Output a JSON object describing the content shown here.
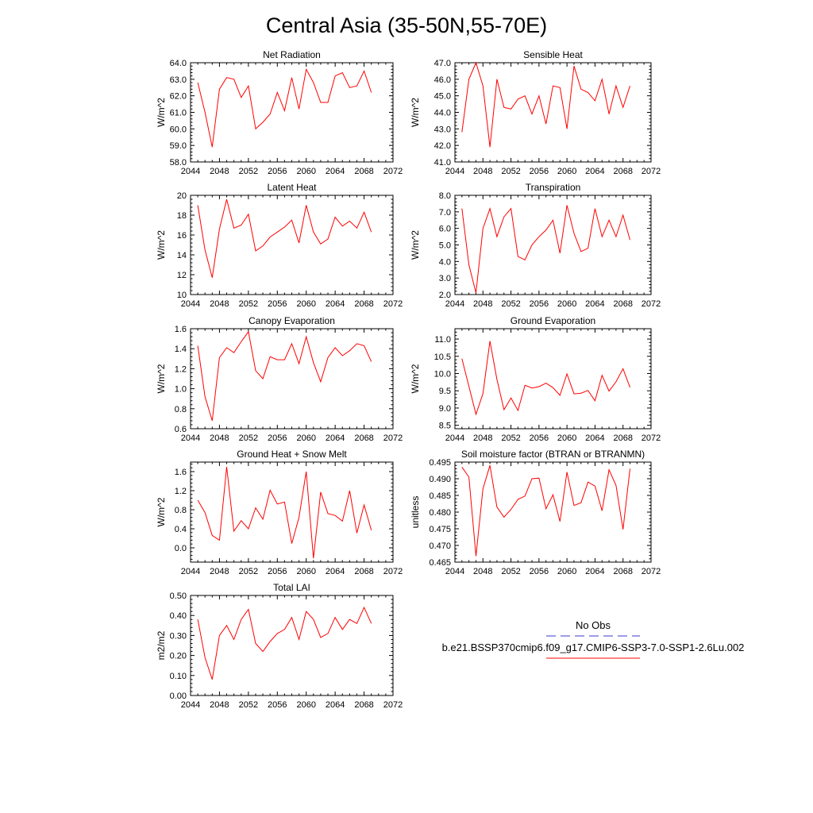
{
  "figure": {
    "title": "Central Asia (35-50N,55-70E)"
  },
  "legend": {
    "entries": [
      {
        "label": "No Obs",
        "color": "#3a3ad0",
        "style": "dashed"
      },
      {
        "label": "b.e21.BSSP370cmip6.f09_g17.CMIP6-SSP3-7.0-SSP1-2.6Lu.002",
        "color": "#ff0000",
        "style": "solid"
      }
    ]
  },
  "colors": {
    "series": "#ff0000",
    "axis": "#000000"
  },
  "chart_data": [
    {
      "type": "line",
      "title": "Net Radiation",
      "ylabel": "W/m^2",
      "xlim": [
        2044,
        2072
      ],
      "ylim": [
        58,
        64
      ],
      "xticks": [
        "2044",
        "2048",
        "2052",
        "2056",
        "2060",
        "2064",
        "2068",
        "2072"
      ],
      "yticks": [
        "58.0",
        "59.0",
        "60.0",
        "61.0",
        "62.0",
        "63.0",
        "64.0"
      ],
      "x": [
        2045,
        2046,
        2047,
        2048,
        2049,
        2050,
        2051,
        2052,
        2053,
        2054,
        2055,
        2056,
        2057,
        2058,
        2059,
        2060,
        2061,
        2062,
        2063,
        2064,
        2065,
        2066,
        2067,
        2068,
        2069
      ],
      "series": [
        {
          "values": [
            62.8,
            61.0,
            58.9,
            62.4,
            63.1,
            63.0,
            61.9,
            62.6,
            60.0,
            60.4,
            60.9,
            62.2,
            61.1,
            63.1,
            61.2,
            63.6,
            62.8,
            61.6,
            61.6,
            63.2,
            63.4,
            62.5,
            62.6,
            63.5,
            62.2
          ]
        }
      ]
    },
    {
      "type": "line",
      "title": "Sensible Heat",
      "ylabel": "W/m^2",
      "xlim": [
        2044,
        2072
      ],
      "ylim": [
        41,
        47
      ],
      "xticks": [
        "2044",
        "2048",
        "2052",
        "2056",
        "2060",
        "2064",
        "2068",
        "2072"
      ],
      "yticks": [
        "41.0",
        "42.0",
        "43.0",
        "44.0",
        "45.0",
        "46.0",
        "47.0"
      ],
      "x": [
        2045,
        2046,
        2047,
        2048,
        2049,
        2050,
        2051,
        2052,
        2053,
        2054,
        2055,
        2056,
        2057,
        2058,
        2059,
        2060,
        2061,
        2062,
        2063,
        2064,
        2065,
        2066,
        2067,
        2068,
        2069
      ],
      "series": [
        {
          "values": [
            42.8,
            46.0,
            47.0,
            45.6,
            41.9,
            46.0,
            44.3,
            44.2,
            44.8,
            45.0,
            43.9,
            45.0,
            43.3,
            45.6,
            45.5,
            43.0,
            46.8,
            45.4,
            45.2,
            44.7,
            46.0,
            43.9,
            45.6,
            44.3,
            45.6
          ]
        }
      ]
    },
    {
      "type": "line",
      "title": "Latent Heat",
      "ylabel": "W/m^2",
      "xlim": [
        2044,
        2072
      ],
      "ylim": [
        10,
        20
      ],
      "xticks": [
        "2044",
        "2048",
        "2052",
        "2056",
        "2060",
        "2064",
        "2068",
        "2072"
      ],
      "yticks": [
        "10",
        "12",
        "14",
        "16",
        "18",
        "20"
      ],
      "x": [
        2045,
        2046,
        2047,
        2048,
        2049,
        2050,
        2051,
        2052,
        2053,
        2054,
        2055,
        2056,
        2057,
        2058,
        2059,
        2060,
        2061,
        2062,
        2063,
        2064,
        2065,
        2066,
        2067,
        2068,
        2069
      ],
      "series": [
        {
          "values": [
            19.0,
            14.5,
            11.7,
            16.6,
            19.6,
            16.7,
            17.0,
            18.1,
            14.4,
            14.9,
            15.8,
            16.3,
            16.8,
            17.5,
            15.2,
            19.0,
            16.3,
            15.1,
            15.6,
            17.8,
            16.9,
            17.4,
            16.7,
            18.3,
            16.3
          ]
        }
      ]
    },
    {
      "type": "line",
      "title": "Transpiration",
      "ylabel": "W/m^2",
      "xlim": [
        2044,
        2072
      ],
      "ylim": [
        2,
        8
      ],
      "xticks": [
        "2044",
        "2048",
        "2052",
        "2056",
        "2060",
        "2064",
        "2068",
        "2072"
      ],
      "yticks": [
        "2.0",
        "3.0",
        "4.0",
        "5.0",
        "6.0",
        "7.0",
        "8.0"
      ],
      "x": [
        2045,
        2046,
        2047,
        2048,
        2049,
        2050,
        2051,
        2052,
        2053,
        2054,
        2055,
        2056,
        2057,
        2058,
        2059,
        2060,
        2061,
        2062,
        2063,
        2064,
        2065,
        2066,
        2067,
        2068,
        2069
      ],
      "series": [
        {
          "values": [
            7.2,
            3.8,
            2.1,
            6.0,
            7.2,
            5.5,
            6.7,
            7.2,
            4.3,
            4.1,
            5.0,
            5.5,
            5.9,
            6.5,
            4.5,
            7.4,
            5.7,
            4.6,
            4.8,
            7.2,
            5.5,
            6.5,
            5.5,
            6.8,
            5.3
          ]
        }
      ]
    },
    {
      "type": "line",
      "title": "Canopy Evaporation",
      "ylabel": "W/m^2",
      "xlim": [
        2044,
        2072
      ],
      "ylim": [
        0.6,
        1.6
      ],
      "xticks": [
        "2044",
        "2048",
        "2052",
        "2056",
        "2060",
        "2064",
        "2068",
        "2072"
      ],
      "yticks": [
        "0.6",
        "0.8",
        "1.0",
        "1.2",
        "1.4",
        "1.6"
      ],
      "x": [
        2045,
        2046,
        2047,
        2048,
        2049,
        2050,
        2051,
        2052,
        2053,
        2054,
        2055,
        2056,
        2057,
        2058,
        2059,
        2060,
        2061,
        2062,
        2063,
        2064,
        2065,
        2066,
        2067,
        2068,
        2069
      ],
      "series": [
        {
          "values": [
            1.43,
            0.92,
            0.68,
            1.31,
            1.41,
            1.36,
            1.47,
            1.57,
            1.18,
            1.1,
            1.32,
            1.29,
            1.29,
            1.45,
            1.25,
            1.52,
            1.26,
            1.07,
            1.31,
            1.41,
            1.33,
            1.38,
            1.45,
            1.43,
            1.27
          ]
        }
      ]
    },
    {
      "type": "line",
      "title": "Ground Evaporation",
      "ylabel": "W/m^2",
      "xlim": [
        2044,
        2072
      ],
      "ylim": [
        8.4,
        11.3
      ],
      "xticks": [
        "2044",
        "2048",
        "2052",
        "2056",
        "2060",
        "2064",
        "2068",
        "2072"
      ],
      "yticks": [
        "8.5",
        "9.0",
        "9.5",
        "10.0",
        "10.5",
        "11.0"
      ],
      "x": [
        2045,
        2046,
        2047,
        2048,
        2049,
        2050,
        2051,
        2052,
        2053,
        2054,
        2055,
        2056,
        2057,
        2058,
        2059,
        2060,
        2061,
        2062,
        2063,
        2064,
        2065,
        2066,
        2067,
        2068,
        2069
      ],
      "series": [
        {
          "values": [
            10.43,
            9.63,
            8.82,
            9.42,
            10.94,
            9.83,
            8.95,
            9.29,
            8.93,
            9.66,
            9.58,
            9.62,
            9.72,
            9.59,
            9.37,
            9.99,
            9.41,
            9.43,
            9.51,
            9.21,
            9.95,
            9.49,
            9.76,
            10.14,
            9.6
          ]
        }
      ]
    },
    {
      "type": "line",
      "title": "Ground Heat + Snow Melt",
      "ylabel": "W/m^2",
      "xlim": [
        2044,
        2072
      ],
      "ylim": [
        -0.3,
        1.8
      ],
      "xticks": [
        "2044",
        "2048",
        "2052",
        "2056",
        "2060",
        "2064",
        "2068",
        "2072"
      ],
      "yticks": [
        "0.0",
        "0.4",
        "0.8",
        "1.2",
        "1.6"
      ],
      "x": [
        2045,
        2046,
        2047,
        2048,
        2049,
        2050,
        2051,
        2052,
        2053,
        2054,
        2055,
        2056,
        2057,
        2058,
        2059,
        2060,
        2061,
        2062,
        2063,
        2064,
        2065,
        2066,
        2067,
        2068,
        2069
      ],
      "series": [
        {
          "values": [
            1.0,
            0.74,
            0.26,
            0.16,
            1.7,
            0.35,
            0.57,
            0.4,
            0.84,
            0.6,
            1.21,
            0.92,
            0.96,
            0.09,
            0.64,
            1.6,
            -0.22,
            1.17,
            0.72,
            0.68,
            0.56,
            1.2,
            0.31,
            0.9,
            0.37
          ]
        }
      ]
    },
    {
      "type": "line",
      "title": "Soil moisture factor (BTRAN or BTRANMN)",
      "ylabel": "unitless",
      "xlim": [
        2044,
        2072
      ],
      "ylim": [
        0.465,
        0.495
      ],
      "xticks": [
        "2044",
        "2048",
        "2052",
        "2056",
        "2060",
        "2064",
        "2068",
        "2072"
      ],
      "yticks": [
        "0.465",
        "0.470",
        "0.475",
        "0.480",
        "0.485",
        "0.490",
        "0.495"
      ],
      "x": [
        2045,
        2046,
        2047,
        2048,
        2049,
        2050,
        2051,
        2052,
        2053,
        2054,
        2055,
        2056,
        2057,
        2058,
        2059,
        2060,
        2061,
        2062,
        2063,
        2064,
        2065,
        2066,
        2067,
        2068,
        2069
      ],
      "series": [
        {
          "values": [
            0.4935,
            0.4905,
            0.4668,
            0.487,
            0.494,
            0.4815,
            0.4785,
            0.4808,
            0.4838,
            0.4848,
            0.49,
            0.4902,
            0.481,
            0.4852,
            0.4772,
            0.492,
            0.482,
            0.4828,
            0.489,
            0.4878,
            0.4804,
            0.4927,
            0.488,
            0.4748,
            0.493
          ]
        }
      ]
    },
    {
      "type": "line",
      "title": "Total LAI",
      "ylabel": "m2/m2",
      "xlim": [
        2044,
        2072
      ],
      "ylim": [
        0.0,
        0.5
      ],
      "xticks": [
        "2044",
        "2048",
        "2052",
        "2056",
        "2060",
        "2064",
        "2068",
        "2072"
      ],
      "yticks": [
        "0.00",
        "0.10",
        "0.20",
        "0.30",
        "0.40",
        "0.50"
      ],
      "x": [
        2045,
        2046,
        2047,
        2048,
        2049,
        2050,
        2051,
        2052,
        2053,
        2054,
        2055,
        2056,
        2057,
        2058,
        2059,
        2060,
        2061,
        2062,
        2063,
        2064,
        2065,
        2066,
        2067,
        2068,
        2069
      ],
      "series": [
        {
          "values": [
            0.38,
            0.19,
            0.08,
            0.3,
            0.35,
            0.28,
            0.38,
            0.43,
            0.26,
            0.22,
            0.27,
            0.31,
            0.33,
            0.39,
            0.28,
            0.42,
            0.38,
            0.29,
            0.31,
            0.39,
            0.33,
            0.38,
            0.36,
            0.44,
            0.36
          ]
        }
      ]
    }
  ]
}
